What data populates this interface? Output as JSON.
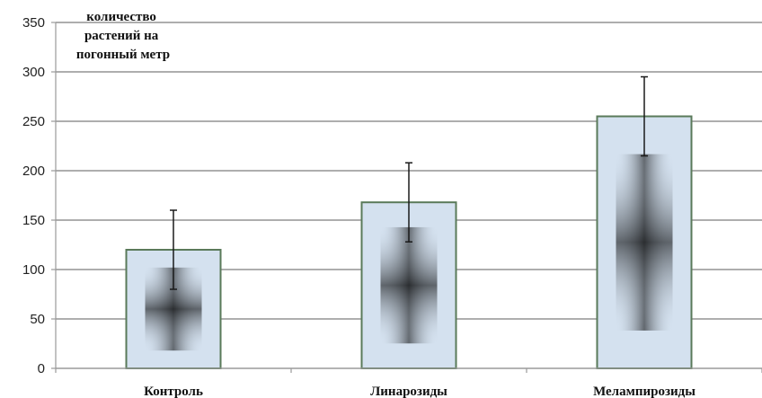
{
  "chart_data": {
    "type": "bar",
    "title": "",
    "ylabel_lines": [
      "количество",
      "растений на",
      "погонный метр"
    ],
    "xlabel": "",
    "categories": [
      "Контроль",
      "Линарозиды",
      "Мелампирозиды"
    ],
    "values": [
      120,
      168,
      255
    ],
    "error_low": [
      80,
      128,
      215
    ],
    "error_high": [
      160,
      208,
      295
    ],
    "ylim": [
      0,
      350
    ],
    "yticks": [
      0,
      50,
      100,
      150,
      200,
      250,
      300,
      350
    ],
    "grid": true,
    "legend": "none"
  },
  "colors": {
    "bar_edge": "#5a7a5a",
    "bar_light": "#d4e1ef",
    "bar_dark": "#000000",
    "gridline": "#7d7d7d",
    "axis": "#9a9a9a",
    "errorbar": "#1a1a1a"
  }
}
